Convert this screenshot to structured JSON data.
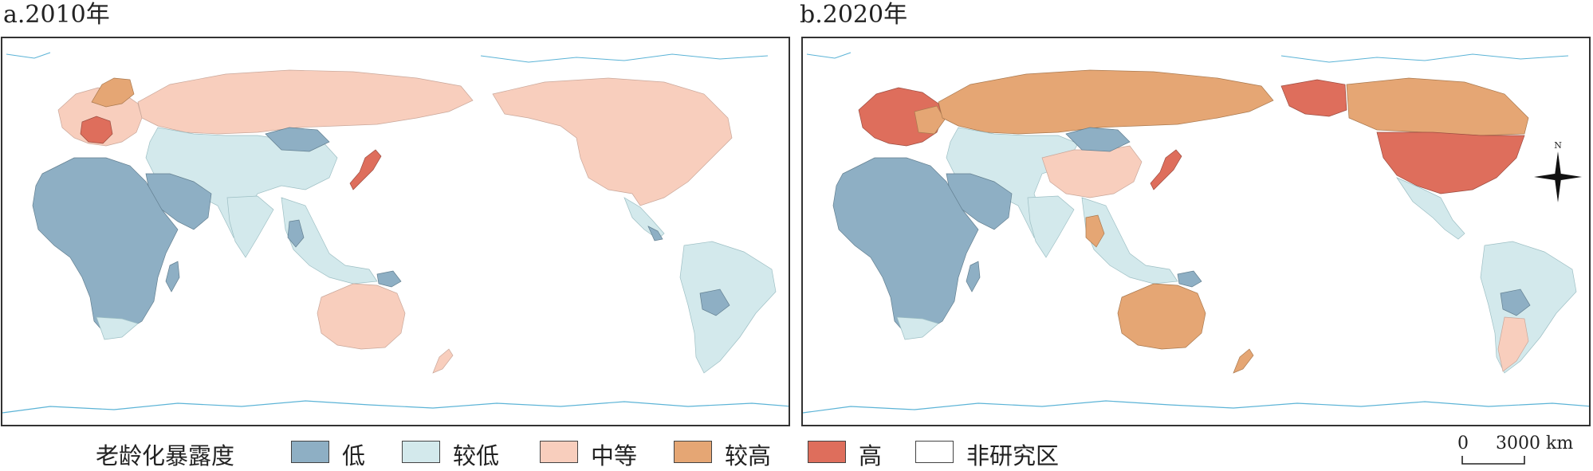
{
  "panels": [
    {
      "title": "a.2010年"
    },
    {
      "title": "b.2020年"
    }
  ],
  "legend": {
    "title": "老龄化暴露度",
    "items": [
      {
        "label": "低",
        "color": "#8eafc4"
      },
      {
        "label": "较低",
        "color": "#d3e9ec"
      },
      {
        "label": "中等",
        "color": "#f8cebd"
      },
      {
        "label": "较高",
        "color": "#e5a674"
      },
      {
        "label": "高",
        "color": "#de6e5c"
      },
      {
        "label": "非研究区",
        "color": "#ffffff"
      }
    ]
  },
  "scalebar": {
    "start": "0",
    "end": "3000 km"
  },
  "compass": {
    "north_label": "N"
  },
  "coastline_color": "#5bb3d6"
}
